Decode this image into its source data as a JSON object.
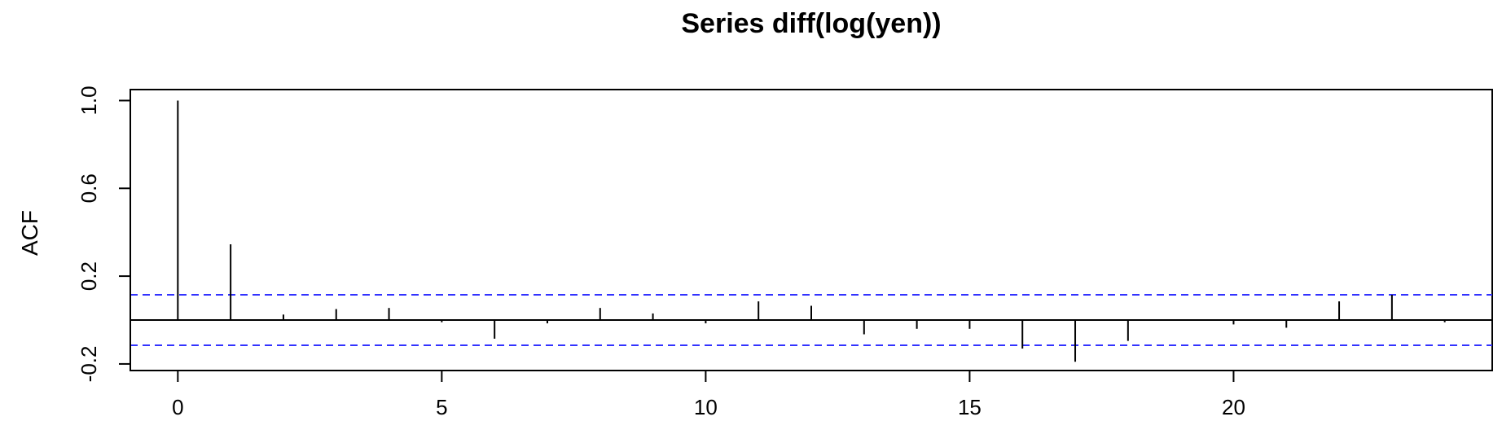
{
  "chart_data": {
    "type": "bar",
    "title": "Series  diff(log(yen))",
    "xlabel": "",
    "ylabel": "ACF",
    "xlim": [
      -0.9,
      24.9
    ],
    "ylim": [
      -0.23,
      1.05
    ],
    "x_ticks": [
      0,
      5,
      10,
      15,
      20
    ],
    "y_ticks": [
      -0.2,
      0.2,
      0.6,
      1.0
    ],
    "y_tick_labels": [
      "-0.2",
      "0.2",
      "0.6",
      "1.0"
    ],
    "x_tick_labels": [
      "0",
      "5",
      "10",
      "15",
      "20"
    ],
    "lags": [
      0,
      1,
      2,
      3,
      4,
      5,
      6,
      7,
      8,
      9,
      10,
      11,
      12,
      13,
      14,
      15,
      16,
      17,
      18,
      19,
      20,
      21,
      22,
      23,
      24
    ],
    "acf": [
      1.0,
      0.345,
      0.025,
      0.05,
      0.055,
      -0.01,
      -0.085,
      -0.015,
      0.055,
      0.03,
      -0.015,
      0.085,
      0.065,
      -0.065,
      -0.04,
      -0.04,
      -0.13,
      -0.19,
      -0.095,
      0.0,
      -0.02,
      -0.035,
      0.085,
      0.115,
      -0.01
    ],
    "confidence_bound": 0.115,
    "colors": {
      "bars": "#000000",
      "bounds": "#3333ff",
      "zero_line": "#000000",
      "frame": "#000000"
    }
  }
}
